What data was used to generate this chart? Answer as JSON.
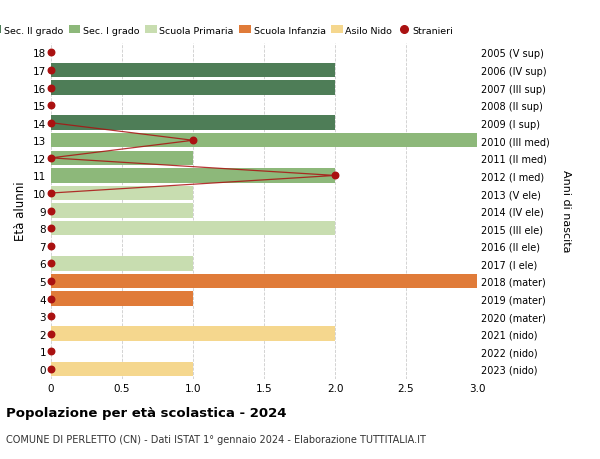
{
  "ages": [
    0,
    1,
    2,
    3,
    4,
    5,
    6,
    7,
    8,
    9,
    10,
    11,
    12,
    13,
    14,
    15,
    16,
    17,
    18
  ],
  "years": [
    "2023 (nido)",
    "2022 (nido)",
    "2021 (nido)",
    "2020 (mater)",
    "2019 (mater)",
    "2018 (mater)",
    "2017 (I ele)",
    "2016 (II ele)",
    "2015 (III ele)",
    "2014 (IV ele)",
    "2013 (V ele)",
    "2012 (I med)",
    "2011 (II med)",
    "2010 (III med)",
    "2009 (I sup)",
    "2008 (II sup)",
    "2007 (III sup)",
    "2006 (IV sup)",
    "2005 (V sup)"
  ],
  "bar_values": [
    1,
    0,
    2,
    0,
    1,
    3,
    1,
    0,
    2,
    1,
    1,
    2,
    1,
    3,
    2,
    0,
    2,
    2,
    0
  ],
  "bar_colors": [
    "#f5d78e",
    "#f5d78e",
    "#f5d78e",
    "#e07b39",
    "#e07b39",
    "#e07b39",
    "#c8ddb0",
    "#c8ddb0",
    "#c8ddb0",
    "#c8ddb0",
    "#c8ddb0",
    "#8db87a",
    "#8db87a",
    "#8db87a",
    "#4e7d57",
    "#4e7d57",
    "#4e7d57",
    "#4e7d57",
    "#4e7d57"
  ],
  "stranieri_ages": [
    0,
    1,
    2,
    3,
    4,
    5,
    6,
    7,
    8,
    9,
    10,
    11,
    12,
    13,
    14,
    15,
    16,
    17,
    18
  ],
  "stranieri_x": [
    0,
    0,
    0,
    0,
    0,
    0,
    0,
    0,
    0,
    0,
    0,
    2,
    0,
    1,
    0,
    0,
    0,
    0,
    0
  ],
  "stranieri_line_ages": [
    10,
    11,
    12,
    13,
    14
  ],
  "stranieri_line_vals": [
    0,
    2,
    0,
    1,
    0
  ],
  "legend_labels": [
    "Sec. II grado",
    "Sec. I grado",
    "Scuola Primaria",
    "Scuola Infanzia",
    "Asilo Nido",
    "Stranieri"
  ],
  "legend_colors": [
    "#4e7d57",
    "#8db87a",
    "#c8ddb0",
    "#e07b39",
    "#f5d78e",
    "#aa1111"
  ],
  "title": "Popolazione per età scolastica - 2024",
  "subtitle": "COMUNE DI PERLETTO (CN) - Dati ISTAT 1° gennaio 2024 - Elaborazione TUTTITALIA.IT",
  "ylabel": "Età alunni",
  "right_label": "Anni di nascita",
  "xlim": [
    0,
    3.0
  ],
  "xticks": [
    0,
    0.5,
    1.0,
    1.5,
    2.0,
    2.5,
    3.0
  ],
  "xtick_labels": [
    "0",
    "0.5",
    "1.0",
    "1.5",
    "2.0",
    "2.5",
    "3.0"
  ],
  "bar_height": 0.82,
  "background_color": "#ffffff",
  "grid_color": "#cccccc",
  "stranieri_color": "#aa1111",
  "stranieri_dot_size": 22
}
